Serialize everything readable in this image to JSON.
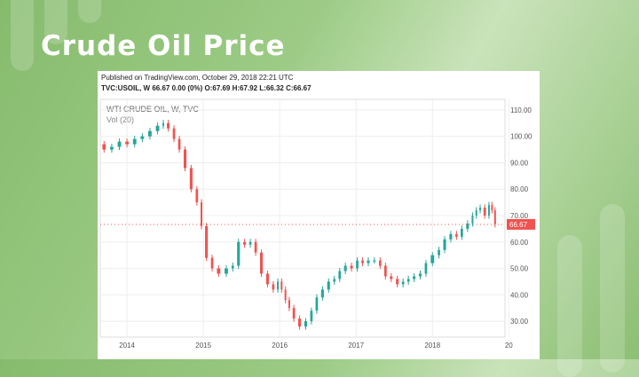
{
  "slide": {
    "title": "Crude Oil Price"
  },
  "header": {
    "published": "Published on TradingView.com, October 29, 2018 22:21 UTC",
    "ticker_line": "TVC:USOIL, W 66.67 0.00 (0%) O:67.69 H:67.92 L:66.32 C:66.67"
  },
  "chart_data": {
    "type": "candlestick",
    "title": "WTI CRUDE OIL, W, TVC",
    "subtitle": "Vol (20)",
    "last_price_label": "66.67",
    "y_ticks": [
      "110.00",
      "100.00",
      "90.00",
      "80.00",
      "70.00",
      "60.00",
      "50.00",
      "40.00",
      "30.00"
    ],
    "x_ticks": [
      "2014",
      "2015",
      "2016",
      "2017",
      "2018",
      "20"
    ],
    "ylim": [
      24,
      114
    ],
    "xlim": [
      2013.65,
      2018.95
    ],
    "colors": {
      "up": "#26a69a",
      "down": "#ef5350",
      "grid": "#eeeeee",
      "axis": "#888888"
    },
    "series": {
      "name": "WTI CRUDE OIL",
      "x": [
        2013.65,
        2013.75,
        2013.85,
        2013.95,
        2014.05,
        2014.15,
        2014.25,
        2014.35,
        2014.45,
        2014.5,
        2014.58,
        2014.65,
        2014.72,
        2014.8,
        2014.88,
        2014.95,
        2015.0,
        2015.08,
        2015.15,
        2015.25,
        2015.35,
        2015.42,
        2015.5,
        2015.58,
        2015.65,
        2015.72,
        2015.8,
        2015.88,
        2015.95,
        2016.0,
        2016.05,
        2016.1,
        2016.15,
        2016.22,
        2016.3,
        2016.38,
        2016.45,
        2016.52,
        2016.6,
        2016.68,
        2016.75,
        2016.82,
        2016.9,
        2016.98,
        2017.05,
        2017.12,
        2017.2,
        2017.28,
        2017.35,
        2017.42,
        2017.5,
        2017.58,
        2017.65,
        2017.72,
        2017.8,
        2017.88,
        2017.95,
        2018.05,
        2018.12,
        2018.2,
        2018.28,
        2018.35,
        2018.42,
        2018.5,
        2018.55,
        2018.6,
        2018.65,
        2018.72,
        2018.76,
        2018.8,
        2018.84
      ],
      "y": [
        97,
        95,
        96,
        98,
        97,
        99,
        100,
        102,
        104,
        105,
        103,
        99,
        95,
        88,
        80,
        75,
        66,
        54,
        50,
        48,
        50,
        51,
        60,
        59,
        60,
        56,
        48,
        44,
        42,
        45,
        42,
        38,
        35,
        31,
        28,
        30,
        34,
        39,
        42,
        45,
        46,
        49,
        51,
        50,
        53,
        52,
        53,
        53,
        51,
        47,
        46,
        44,
        45,
        46,
        47,
        48,
        52,
        55,
        57,
        61,
        63,
        62,
        65,
        67,
        70,
        72,
        73,
        70,
        74,
        72,
        66.67
      ]
    }
  }
}
